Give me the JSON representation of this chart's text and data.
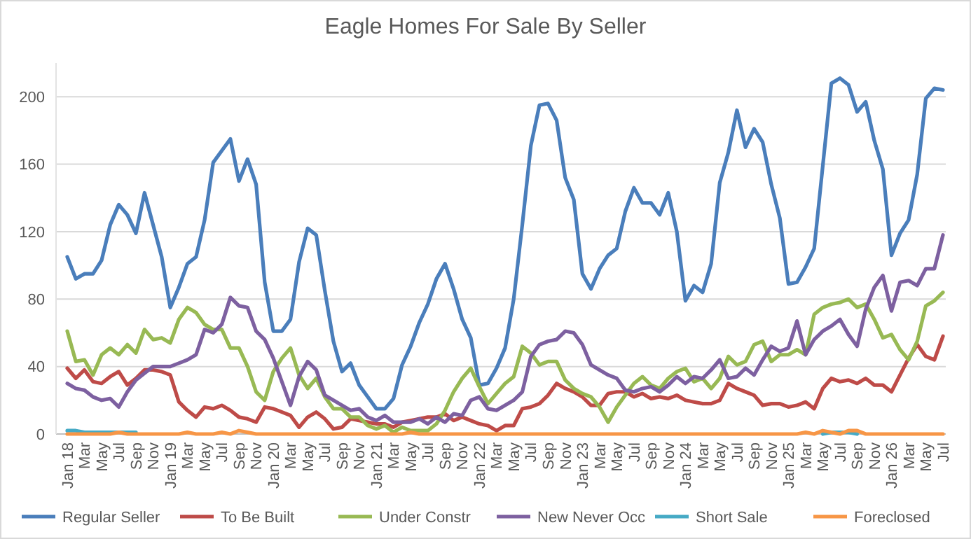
{
  "chart_data": {
    "type": "line",
    "title": "Eagle Homes For Sale By Seller",
    "categories": [
      "Jan 18",
      null,
      "Mar",
      null,
      "May",
      null,
      "Jul",
      null,
      "Sep",
      null,
      "Nov",
      null,
      "Jan 19",
      null,
      "Mar",
      null,
      "May",
      null,
      "Jul",
      null,
      "Sep",
      null,
      "Nov",
      null,
      "Jan 20",
      null,
      "Mar",
      null,
      "May",
      null,
      "Jul",
      null,
      "Sep",
      null,
      "Nov",
      null,
      "Jan 21",
      null,
      "Mar",
      null,
      "May",
      null,
      "Jul",
      null,
      "Sep",
      null,
      "Nov",
      null,
      "Jan 22",
      null,
      "Mar",
      null,
      "May",
      null,
      "Jul",
      null,
      "Sep",
      null,
      "Nov",
      null,
      "Jan 23",
      null,
      "Mar",
      null,
      "May",
      null,
      "Jul",
      null,
      "Sep",
      null,
      "Nov",
      null,
      "Jan 24",
      null,
      "Mar",
      null,
      "May",
      null,
      "Jul",
      null,
      "Sep",
      null,
      "Nov",
      null,
      "Jan 25",
      null,
      "Mar",
      null,
      "May",
      null,
      "Jul",
      null,
      "Sep",
      null,
      "Nov",
      null,
      "Jan 26",
      null,
      "Mar",
      null,
      "May",
      null,
      "Jul"
    ],
    "ylim": [
      0,
      220
    ],
    "yticks": [
      0,
      40,
      80,
      120,
      160,
      200
    ],
    "grid": "y",
    "legend": "bottom",
    "marker": "none",
    "line_style": "solid",
    "series": [
      {
        "name": "Regular Seller",
        "color": "#4a7ebb",
        "values": [
          105,
          92,
          95,
          95,
          103,
          124,
          136,
          130,
          119,
          143,
          124,
          105,
          75,
          87,
          101,
          105,
          127,
          161,
          168,
          175,
          150,
          163,
          148,
          90,
          61,
          61,
          68,
          102,
          122,
          118,
          85,
          55,
          37,
          42,
          29,
          22,
          15,
          15,
          21,
          41,
          52,
          66,
          77,
          92,
          101,
          86,
          68,
          57,
          29,
          30,
          39,
          51,
          80,
          124,
          171,
          195,
          196,
          186,
          152,
          139,
          95,
          86,
          98,
          106,
          110,
          132,
          146,
          137,
          137,
          130,
          143,
          120,
          79,
          88,
          84,
          101,
          149,
          167,
          192,
          170,
          181,
          173,
          148,
          128,
          89,
          90,
          99,
          110,
          159,
          208,
          211,
          207,
          191,
          197,
          174,
          157,
          106,
          119,
          127,
          154,
          199,
          205,
          204
        ]
      },
      {
        "name": "To Be Built",
        "color": "#be4b48",
        "values": [
          39,
          33,
          38,
          31,
          30,
          34,
          37,
          29,
          33,
          38,
          38,
          37,
          35,
          19,
          14,
          10,
          16,
          15,
          17,
          14,
          10,
          9,
          7,
          16,
          15,
          13,
          11,
          4,
          10,
          13,
          9,
          3,
          4,
          9,
          8,
          7,
          6,
          6,
          4,
          7,
          8,
          9,
          10,
          10,
          12,
          8,
          10,
          8,
          6,
          5,
          2,
          5,
          5,
          15,
          16,
          18,
          23,
          30,
          27,
          25,
          22,
          17,
          17,
          24,
          25,
          25,
          22,
          24,
          21,
          22,
          21,
          23,
          20,
          19,
          18,
          18,
          20,
          30,
          27,
          25,
          23,
          17,
          18,
          18,
          16,
          17,
          19,
          15,
          27,
          33,
          31,
          32,
          30,
          33,
          29,
          29,
          25,
          35,
          45,
          53,
          46,
          44,
          58
        ]
      },
      {
        "name": "Under Constr",
        "color": "#98b954",
        "values": [
          61,
          43,
          44,
          35,
          47,
          51,
          47,
          53,
          48,
          62,
          56,
          57,
          54,
          68,
          75,
          72,
          65,
          62,
          62,
          51,
          51,
          40,
          25,
          20,
          37,
          45,
          51,
          35,
          27,
          33,
          22,
          15,
          15,
          10,
          10,
          5,
          3,
          5,
          1,
          4,
          2,
          2,
          2,
          6,
          14,
          25,
          33,
          39,
          28,
          18,
          24,
          30,
          34,
          52,
          48,
          41,
          43,
          43,
          32,
          27,
          24,
          22,
          16,
          7,
          16,
          23,
          30,
          34,
          29,
          27,
          33,
          37,
          39,
          31,
          33,
          27,
          33,
          46,
          41,
          43,
          53,
          55,
          43,
          47,
          47,
          50,
          47,
          71,
          75,
          77,
          78,
          80,
          75,
          77,
          68,
          57,
          59,
          50,
          44,
          55,
          76,
          79,
          84
        ]
      },
      {
        "name": "New Never Occ",
        "color": "#7d60a0",
        "values": [
          30,
          27,
          26,
          22,
          20,
          21,
          16,
          25,
          32,
          36,
          40,
          40,
          40,
          42,
          44,
          47,
          62,
          60,
          65,
          81,
          76,
          75,
          61,
          56,
          45,
          31,
          17,
          34,
          43,
          38,
          23,
          20,
          17,
          14,
          15,
          10,
          8,
          11,
          7,
          7,
          7,
          9,
          6,
          10,
          7,
          12,
          11,
          20,
          22,
          15,
          14,
          17,
          20,
          25,
          46,
          53,
          55,
          56,
          61,
          60,
          53,
          41,
          38,
          35,
          33,
          26,
          25,
          27,
          28,
          25,
          29,
          34,
          30,
          34,
          33,
          38,
          44,
          33,
          34,
          39,
          35,
          44,
          52,
          49,
          51,
          67,
          47,
          56,
          61,
          64,
          68,
          59,
          52,
          74,
          87,
          94,
          73,
          90,
          91,
          88,
          98,
          98,
          118
        ]
      },
      {
        "name": "Short Sale",
        "color": "#46aac5",
        "values": [
          2,
          2,
          1,
          1,
          1,
          1,
          1,
          1,
          1,
          null,
          null,
          null,
          null,
          null,
          null,
          null,
          null,
          null,
          null,
          null,
          null,
          null,
          null,
          null,
          null,
          null,
          null,
          null,
          null,
          null,
          null,
          null,
          null,
          null,
          null,
          null,
          null,
          null,
          null,
          null,
          null,
          null,
          null,
          null,
          null,
          null,
          null,
          null,
          null,
          null,
          null,
          null,
          null,
          null,
          null,
          null,
          null,
          null,
          null,
          null,
          null,
          null,
          null,
          null,
          null,
          null,
          null,
          null,
          null,
          null,
          null,
          null,
          null,
          null,
          null,
          null,
          null,
          null,
          null,
          null,
          null,
          null,
          null,
          null,
          null,
          null,
          null,
          null,
          0,
          1,
          1,
          1,
          0,
          null,
          null,
          null,
          null,
          null,
          null,
          null,
          null,
          null,
          null
        ]
      },
      {
        "name": "Foreclosed",
        "color": "#f79646",
        "values": [
          0,
          0,
          0,
          0,
          0,
          0,
          1,
          0,
          0,
          0,
          0,
          0,
          0,
          0,
          1,
          0,
          0,
          0,
          1,
          0,
          2,
          1,
          0,
          0,
          0,
          0,
          0,
          0,
          0,
          0,
          0,
          0,
          0,
          0,
          0,
          0,
          0,
          0,
          0,
          0,
          1,
          0,
          0,
          0,
          0,
          0,
          0,
          0,
          0,
          0,
          0,
          0,
          0,
          0,
          0,
          0,
          0,
          0,
          0,
          0,
          0,
          0,
          0,
          0,
          0,
          0,
          0,
          0,
          0,
          0,
          0,
          0,
          0,
          0,
          0,
          0,
          0,
          0,
          0,
          0,
          0,
          0,
          0,
          0,
          0,
          0,
          1,
          0,
          2,
          1,
          0,
          2,
          2,
          0,
          0,
          0,
          0,
          0,
          0,
          0,
          0,
          0,
          0
        ]
      }
    ]
  }
}
